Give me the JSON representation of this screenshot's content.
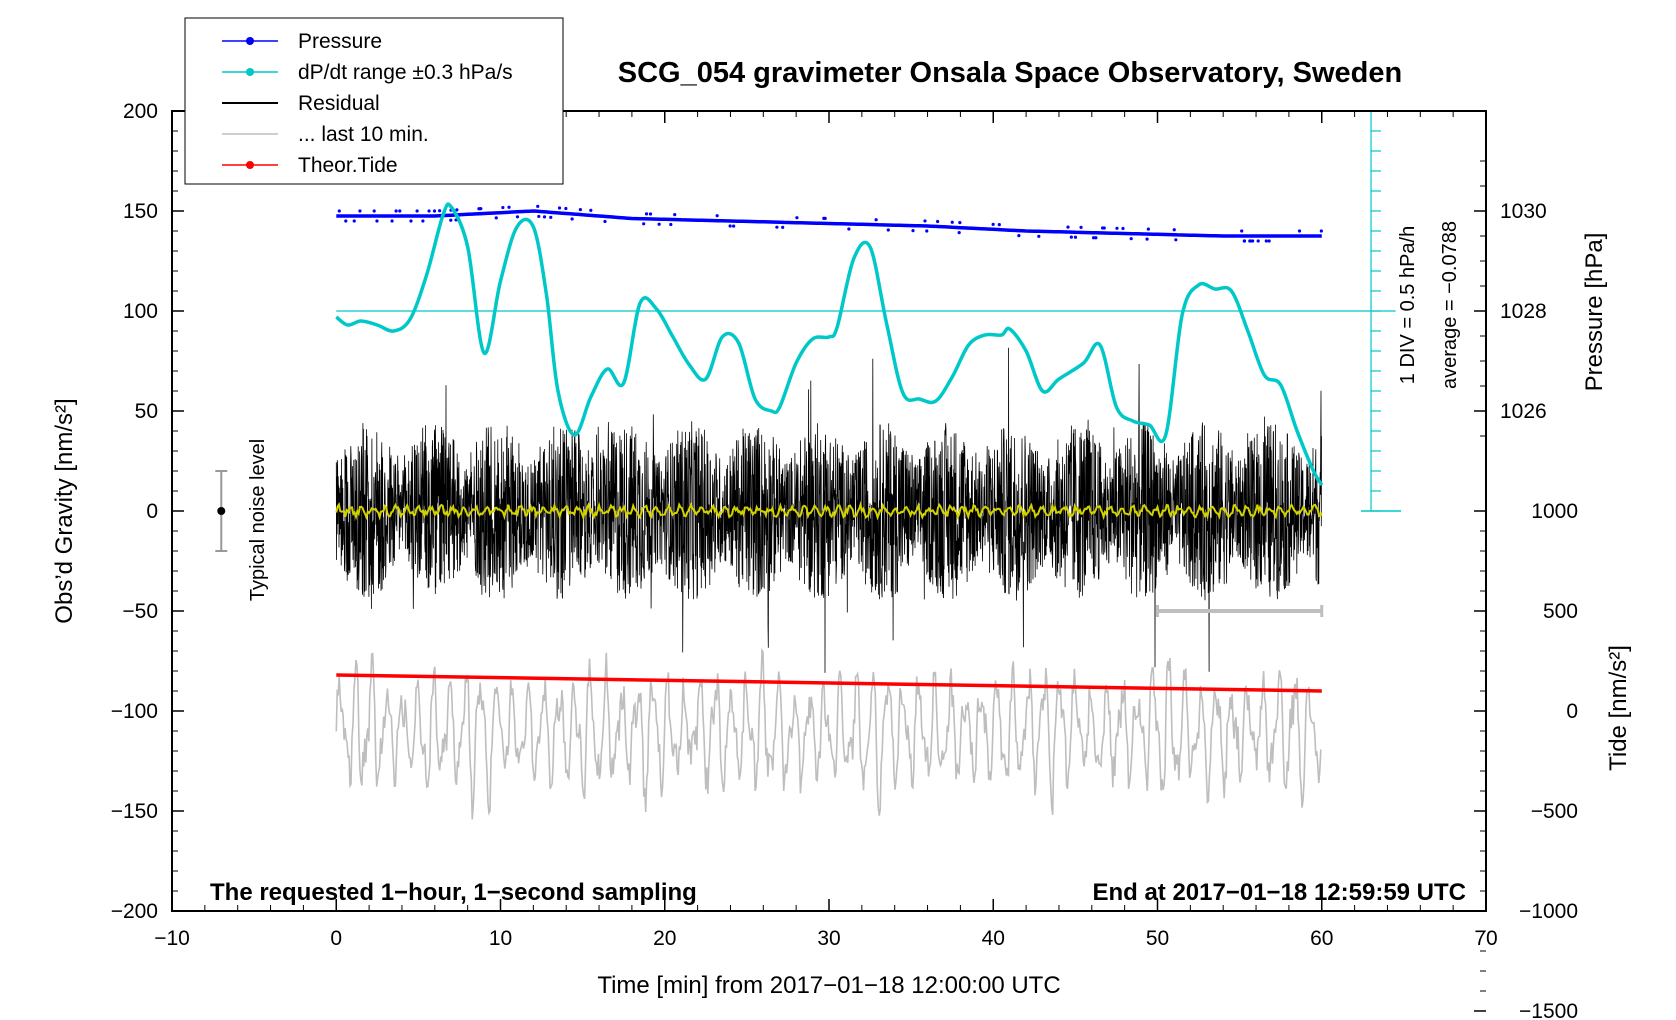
{
  "chart_data": {
    "type": "line",
    "title": "SCG_054 gravimeter Onsala Space Observatory, Sweden",
    "xlabel": "Time [min] from 2017−01−18 12:00:00 UTC",
    "ylabel_left": "Obs’d Gravity [nm/s²]",
    "ylabel_right_pressure": "Pressure [hPa]",
    "ylabel_right_tide": "Tide [nm/s²]",
    "xlim": [
      -10,
      70
    ],
    "ylim": [
      -200,
      200
    ],
    "x_ticks": [
      -10,
      0,
      10,
      20,
      30,
      40,
      50,
      60,
      70
    ],
    "x_tick_labels": [
      "−10",
      "0",
      "10",
      "20",
      "30",
      "40",
      "50",
      "60",
      "70"
    ],
    "y_ticks": [
      -200,
      -150,
      -100,
      -50,
      0,
      50,
      100,
      150,
      200
    ],
    "y_tick_labels": [
      "−200",
      "−150",
      "−100",
      "−50",
      "0",
      "50",
      "100",
      "150",
      "200"
    ],
    "pressure_axis": {
      "ticks": [
        1026,
        1028,
        1030
      ],
      "tick_labels": [
        "1026",
        "1028",
        "1030"
      ],
      "gravity_at_1026": 50,
      "gravity_per_hPa": 25
    },
    "tide_axis": {
      "ticks": [
        -1500,
        -1000,
        -500,
        0,
        500,
        1000
      ],
      "tick_labels": [
        "−1500",
        "−1000",
        "−500",
        "0",
        "500",
        "1000"
      ],
      "gravity_at_zero": -100,
      "gravity_per_unit": 0.1
    },
    "dpdt_axis": {
      "label_div": "1 DIV = 0.5 hPa/h",
      "label_avg": "average = −0.0788",
      "baseline_gravity": 100,
      "top_gravity": 200,
      "bottom_gravity": 0,
      "divisions_gravity": 10
    },
    "legend": {
      "position": "top-left",
      "entries": [
        {
          "label": "Pressure",
          "color": "#0000ff",
          "marker": true
        },
        {
          "label": "dP/dt range ±0.3 hPa/s",
          "color": "#00c8c8",
          "marker": true
        },
        {
          "label": "Residual",
          "color": "#000000",
          "marker": false
        },
        {
          "label": "... last 10 min.",
          "color": "#bebebe",
          "marker": false
        },
        {
          "label": "Theor.Tide",
          "color": "#ff0000",
          "marker": true
        }
      ]
    },
    "noise_level": {
      "label": "Typical noise level",
      "x": -7,
      "center": 0,
      "low": -20,
      "high": 20
    },
    "footer_left": "The requested 1−hour, 1−second sampling",
    "footer_right": "End at 2017−01−18 12:59:59 UTC",
    "last10_bracket": {
      "x0": 50,
      "x1": 60,
      "y": -50
    },
    "series": [
      {
        "name": "Pressure",
        "color": "#0000ff",
        "unit": "hPa",
        "x": [
          0,
          6,
          12,
          18,
          24,
          30,
          36,
          42,
          48,
          54,
          60
        ],
        "values": [
          1029.9,
          1029.9,
          1030.0,
          1029.85,
          1029.8,
          1029.75,
          1029.7,
          1029.6,
          1029.55,
          1029.5,
          1029.5
        ]
      },
      {
        "name": "dP/dt",
        "color": "#00c8c8",
        "unit": "gravity-axis",
        "x": [
          0,
          0.7,
          1.5,
          2.5,
          3.5,
          4.5,
          5.5,
          6.5,
          7.0,
          8.0,
          9.0,
          10.0,
          11.0,
          12.0,
          12.8,
          13.5,
          14.5,
          15.5,
          16.5,
          17.5,
          18.5,
          19.5,
          20.5,
          21.5,
          22.5,
          23.5,
          24.5,
          25.5,
          26.5,
          27.0,
          28.0,
          29.0,
          30.0,
          30.5,
          31.5,
          32.5,
          33.5,
          34.5,
          35.5,
          36.5,
          37.5,
          38.5,
          39.5,
          40.5,
          41.0,
          42.0,
          43.0,
          44.0,
          45.5,
          46.5,
          47.5,
          48.5,
          49.5,
          50.5,
          51.5,
          52.5,
          53.5,
          54.5,
          55.5,
          56.5,
          57.5,
          58.5,
          59.5,
          60.0
        ],
        "values": [
          97,
          93,
          95,
          93,
          90,
          96,
          118,
          148,
          152,
          132,
          79,
          115,
          142,
          142,
          108,
          60,
          38,
          57,
          71,
          64,
          104,
          101,
          87,
          73,
          66,
          87,
          84,
          56,
          50,
          52,
          74,
          86,
          87,
          92,
          126,
          132,
          94,
          59,
          56,
          55,
          67,
          83,
          88,
          88,
          91,
          80,
          60,
          66,
          74,
          83,
          52,
          45,
          43,
          38,
          98,
          113,
          111,
          110,
          90,
          68,
          63,
          40,
          20,
          13
        ]
      },
      {
        "name": "Residual",
        "color": "#000000",
        "x_range": [
          0,
          60
        ],
        "amplitude_nm_s2": 45
      },
      {
        "name": "Residual smoothed",
        "color": "#d2d200",
        "x_range": [
          0,
          60
        ],
        "amplitude_nm_s2": 3
      },
      {
        "name": "... last 10 min.",
        "color": "#bebebe",
        "x_range": [
          0,
          60
        ],
        "center_nm_s2": -110,
        "amplitude_nm_s2": 40
      },
      {
        "name": "Theor.Tide",
        "color": "#ff0000",
        "unit": "nm/s²",
        "x": [
          0,
          60
        ],
        "values": [
          180,
          100
        ]
      }
    ]
  }
}
